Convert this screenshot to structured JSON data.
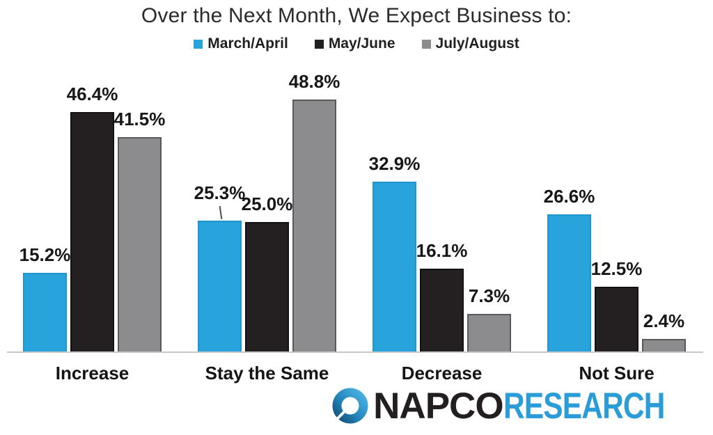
{
  "title": "Over the Next Month, We Expect Business to:",
  "chart_data": {
    "type": "bar",
    "title": "Over the Next Month, We Expect Business to:",
    "categories": [
      "Increase",
      "Stay the Same",
      "Decrease",
      "Not Sure"
    ],
    "series": [
      {
        "name": "March/April",
        "color": "#29a3dc",
        "border_color": "#2196ce",
        "values": [
          15.2,
          25.3,
          32.9,
          26.6
        ]
      },
      {
        "name": "May/June",
        "color": "#241f21",
        "border_color": "#141112",
        "values": [
          46.4,
          25.0,
          16.1,
          12.5
        ]
      },
      {
        "name": "July/August",
        "color": "#8c8c8e",
        "border_color": "#59595b",
        "values": [
          41.5,
          48.8,
          7.3,
          2.4
        ]
      }
    ],
    "value_suffix": "%",
    "value_labels_shown": true,
    "ylim": [
      0,
      55
    ],
    "grid": false,
    "legend_position": "top-center",
    "axis_line_color": "#c8c8c8",
    "annotations": [
      {
        "callout_line": true,
        "series": "March/April",
        "category": "Stay the Same",
        "label": "25.3%"
      }
    ]
  },
  "logo": {
    "icon": "napco-circle-swirl-logo",
    "name_primary": "NAPCO",
    "name_secondary": "RESEARCH",
    "primary_color": "#231f20",
    "secondary_color": "#2b9cd7"
  }
}
